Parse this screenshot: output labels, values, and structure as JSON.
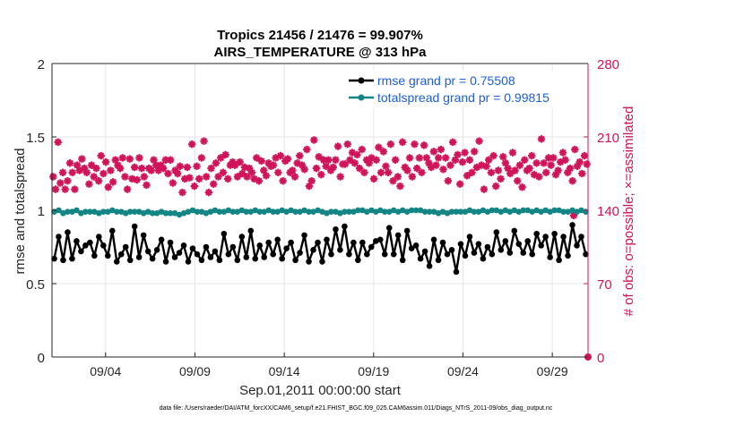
{
  "chart_data": {
    "type": "line",
    "title_line1": "Tropics 21456 / 21476 = 99.907%",
    "title_line2": "AIRS_TEMPERATURE @ 313 hPa",
    "xlabel": "Sep.01,2011 00:00:00 start",
    "ylabel_left": "rmse and totalspread",
    "ylabel_right": "# of obs: o=possible; ×=assimilated",
    "footnote": "data file: /Users/raeder/DAI/ATM_forcXX/CAM6_setup/f.e21.FHIST_BGC.f09_025.CAM6assim.011/Diags_NTrS_2011-09/obs_diag_output.nc",
    "xlim": [
      0,
      60
    ],
    "ylim_left": [
      0,
      2
    ],
    "ylim_right": [
      0,
      280
    ],
    "x_ticks": [
      {
        "x": 6,
        "label": "09/04"
      },
      {
        "x": 16,
        "label": "09/09"
      },
      {
        "x": 26,
        "label": "09/14"
      },
      {
        "x": 36,
        "label": "09/19"
      },
      {
        "x": 46,
        "label": "09/24"
      },
      {
        "x": 56,
        "label": "09/29"
      }
    ],
    "y_ticks_left": [
      {
        "v": 0,
        "label": "0"
      },
      {
        "v": 0.5,
        "label": "0.5"
      },
      {
        "v": 1,
        "label": "1"
      },
      {
        "v": 1.5,
        "label": "1.5"
      },
      {
        "v": 2,
        "label": "2"
      }
    ],
    "y_ticks_right": [
      {
        "v": 0,
        "label": "0"
      },
      {
        "v": 70,
        "label": "70"
      },
      {
        "v": 140,
        "label": "140"
      },
      {
        "v": 210,
        "label": "210"
      },
      {
        "v": 280,
        "label": "280"
      }
    ],
    "grid": true,
    "legend_position": "top-right",
    "colors": {
      "rmse": "#000000",
      "spread": "#138585",
      "obs": "#d0145a",
      "legend_text": "#1f5fd1",
      "grid": "#e6e6e6",
      "axis": "#262626"
    },
    "series": [
      {
        "name": "rmse grand pr = 0.75508",
        "axis": "left",
        "values": [
          0.67,
          0.82,
          0.66,
          0.85,
          0.67,
          0.79,
          0.72,
          0.76,
          0.78,
          0.69,
          0.82,
          0.76,
          0.69,
          0.86,
          0.65,
          0.7,
          0.75,
          0.66,
          0.89,
          0.68,
          0.83,
          0.72,
          0.67,
          0.73,
          0.8,
          0.65,
          0.78,
          0.68,
          0.71,
          0.76,
          0.65,
          0.74,
          0.7,
          0.66,
          0.75,
          0.68,
          0.72,
          0.66,
          0.84,
          0.7,
          0.75,
          0.66,
          0.82,
          0.68,
          0.86,
          0.67,
          0.76,
          0.68,
          0.78,
          0.7,
          0.8,
          0.67,
          0.74,
          0.78,
          0.66,
          0.71,
          0.83,
          0.65,
          0.73,
          0.78,
          0.65,
          0.8,
          0.7,
          0.87,
          0.73,
          0.89,
          0.7,
          0.78,
          0.66,
          0.78,
          0.7,
          0.75,
          0.79,
          0.8,
          0.7,
          0.88,
          0.7,
          0.83,
          0.66,
          0.86,
          0.74,
          0.76,
          0.67,
          0.72,
          0.62,
          0.8,
          0.66,
          0.78,
          0.7,
          0.73,
          0.58,
          0.77,
          0.69,
          0.82,
          0.71,
          0.77,
          0.67,
          0.75,
          0.7,
          0.85,
          0.73,
          0.79,
          0.71,
          0.86,
          0.77,
          0.71,
          0.79,
          0.7,
          0.84,
          0.76,
          0.82,
          0.68,
          0.84,
          0.66,
          0.82,
          0.69,
          0.9,
          0.76,
          0.82,
          0.7,
          0.81,
          0.72,
          0.8,
          0.72,
          0.86,
          0.73,
          0.78,
          0.7,
          0.87,
          0.73,
          0.76,
          0.7,
          0.82,
          0.66,
          0.86,
          0.68,
          0.74,
          0.7,
          0.8,
          0.74,
          0.82,
          0.68,
          0.86,
          0.72,
          0.8,
          0.68,
          0.91,
          0.76,
          0.82,
          0.69,
          0.84,
          0.74,
          0.78,
          0.69,
          0.84,
          0.72,
          0.8,
          0.7,
          0.85,
          0.72,
          0.8,
          0.68,
          0.82,
          0.74,
          0.78,
          0.7,
          0.76,
          0.72,
          0.8,
          0.68,
          0.86,
          0.74,
          0.8,
          0.7,
          0.82,
          0.68,
          0.76,
          0.7,
          0.8,
          0.74,
          0.72,
          0.69,
          0.72,
          0.7,
          0.8,
          0.66,
          0.8,
          0.74,
          0.78,
          0.7,
          0.87,
          0.74,
          0.86,
          0.72,
          0.82,
          0.75,
          0.73,
          0.7,
          0.75,
          0.71,
          0.76,
          0.73,
          0.78,
          0.7,
          0.77,
          0.72,
          0.8,
          0.75,
          0.82,
          0.7,
          0.8,
          0.72,
          0.78,
          0.73,
          0.76,
          0.7,
          0.8,
          0.72,
          0.77,
          0.74,
          0.72,
          0.7,
          0.8,
          0.73,
          0.76,
          0.66,
          0.82,
          0.8
        ],
        "values_note": "first 120 values used; 2 per day"
      },
      {
        "name": "totalspread grand pr = 0.99815",
        "axis": "left",
        "values": [
          0.99,
          1.0,
          0.98,
          0.99,
          0.99,
          1.0,
          0.98,
          0.99,
          0.99,
          0.99,
          0.98,
          0.99,
          0.99,
          1.0,
          0.99,
          0.99,
          0.98,
          0.99,
          0.99,
          0.99,
          0.98,
          0.99,
          0.98,
          0.98,
          0.99,
          0.98,
          0.98,
          0.98,
          0.97,
          0.98,
          0.99,
          1.0,
          0.99,
          0.99,
          0.98,
          0.99,
          1.0,
          0.99,
          0.99,
          1.0,
          0.99,
          0.99,
          1.0,
          0.99,
          0.99,
          1.0,
          0.99,
          0.99,
          1.0,
          0.99,
          0.99,
          1.0,
          0.99,
          1.0,
          0.99,
          0.99,
          1.0,
          0.99,
          0.99,
          1.0,
          0.99,
          0.98,
          0.99,
          0.99,
          0.98,
          0.99,
          0.99,
          0.99,
          1.0,
          1.0,
          0.99,
          1.0,
          0.99,
          1.0,
          0.99,
          0.99,
          1.0,
          0.99,
          1.0,
          0.99,
          1.0,
          1.0,
          1.0,
          0.99,
          0.99,
          0.99,
          0.98,
          0.99,
          0.98,
          0.99,
          0.99,
          0.99,
          0.99,
          1.0,
          0.99,
          0.99,
          1.0,
          0.99,
          1.0,
          1.0,
          0.99,
          1.0,
          0.99,
          1.0,
          0.99,
          1.0,
          1.0,
          0.99,
          1.0,
          0.99,
          1.0,
          0.99,
          1.0,
          1.0,
          0.99,
          0.99,
          1.0,
          0.99,
          1.0,
          0.99
        ]
      },
      {
        "name": "# of obs assimilated",
        "axis": "right",
        "values": [
          172,
          160,
          205,
          166,
          176,
          160,
          168,
          185,
          176,
          160,
          183,
          178,
          189,
          180,
          176,
          165,
          183,
          172,
          180,
          168,
          192,
          175,
          186,
          162,
          178,
          167,
          188,
          183,
          180,
          190,
          172,
          160,
          189,
          170,
          181,
          169,
          190,
          180,
          172,
          164,
          180,
          178,
          188,
          183,
          178,
          183,
          180,
          188,
          175,
          188,
          166,
          178,
          175,
          182,
          157,
          170,
          181,
          171,
          203,
          163,
          182,
          170,
          190,
          206,
          172,
          157,
          180,
          165,
          185,
          172,
          190,
          176,
          193,
          170,
          183,
          186,
          183,
          172,
          186,
          175,
          181,
          172,
          180,
          176,
          170,
          190,
          168,
          187,
          178,
          173,
          185,
          182,
          183,
          190,
          176,
          192,
          168,
          187,
          189,
          176,
          178,
          172,
          185,
          192,
          183,
          179,
          198,
          163,
          168,
          207,
          180,
          191,
          174,
          188,
          182,
          188,
          178,
          181,
          188,
          201,
          172,
          184,
          184,
          203,
          188,
          195,
          185,
          193,
          180,
          198,
          176,
          188,
          185,
          190,
          170,
          188,
          200,
          176,
          196,
          182,
          176,
          203,
          168,
          188,
          172,
          163,
          205,
          181,
          178,
          190,
          172,
          203,
          180,
          190,
          176,
          202,
          190,
          185,
          181,
          196,
          183,
          190,
          198,
          179,
          190,
          168,
          183,
          205,
          188,
          193,
          165,
          186,
          195,
          173,
          188,
          176,
          196,
          181,
          206,
          183,
          160,
          182,
          188,
          176,
          192,
          163,
          178,
          170,
          191,
          185,
          180,
          175,
          195,
          178,
          168,
          183,
          162,
          188,
          178,
          180,
          192,
          174,
          185,
          172,
          208,
          185,
          176,
          190,
          183,
          190,
          174,
          178,
          186,
          195,
          188,
          176,
          180,
          168,
          198,
          182,
          186,
          175,
          192,
          184
        ]
      }
    ],
    "obs_special_points": [
      {
        "x": 58.4,
        "v": 135,
        "marker": "star"
      },
      {
        "x": 60,
        "v": 0,
        "marker": "circle"
      }
    ]
  }
}
